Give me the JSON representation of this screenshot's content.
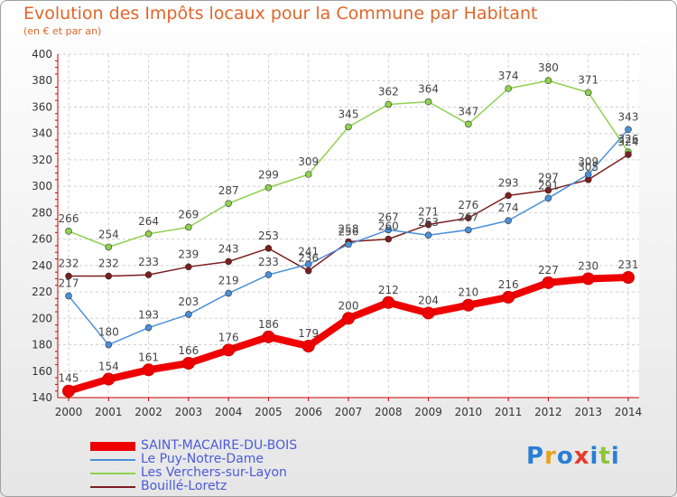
{
  "title": "Evolution des Impôts locaux pour la Commune par Habitant",
  "subtitle": "(en € et par an)",
  "logo_text": "Proxiti",
  "chart_data": {
    "type": "line",
    "x": [
      2000,
      2001,
      2002,
      2003,
      2004,
      2005,
      2006,
      2007,
      2008,
      2009,
      2010,
      2011,
      2012,
      2013,
      2014
    ],
    "ylim": [
      140,
      400
    ],
    "yticks": [
      140,
      160,
      180,
      200,
      220,
      240,
      260,
      280,
      300,
      320,
      340,
      360,
      380,
      400
    ],
    "grid": true,
    "legend_position": "bottom",
    "series": [
      {
        "name": "Les Verchers-sur-Layon",
        "color": "#8fd14f",
        "values": [
          266,
          254,
          264,
          269,
          287,
          299,
          309,
          345,
          362,
          364,
          347,
          374,
          380,
          371,
          326
        ]
      },
      {
        "name": "Bouillé-Loretz",
        "color": "#7b1e1e",
        "values": [
          232,
          232,
          233,
          239,
          243,
          253,
          236,
          258,
          260,
          271,
          276,
          293,
          297,
          305,
          324
        ]
      },
      {
        "name": "Le Puy-Notre-Dame",
        "color": "#4a90d9",
        "values": [
          217,
          180,
          193,
          203,
          219,
          233,
          241,
          256,
          267,
          263,
          267,
          274,
          291,
          309,
          343
        ]
      },
      {
        "name": "SAINT-MACAIRE-DU-BOIS",
        "color": "#ee0000",
        "values": [
          145,
          154,
          161,
          166,
          176,
          186,
          179,
          200,
          212,
          204,
          210,
          216,
          227,
          230,
          231
        ]
      }
    ],
    "legend_order": [
      3,
      2,
      0,
      1
    ],
    "point_labels": [
      [
        "266",
        "254",
        "264",
        "269",
        "287",
        "299",
        "309",
        "345",
        "362",
        "364",
        "347",
        "374",
        "380",
        "371",
        "326"
      ],
      [
        "232",
        "232",
        "233",
        "239",
        "243",
        "253",
        "236",
        "258",
        "260",
        "271",
        "276",
        "293",
        "297",
        "305",
        "324"
      ],
      [
        "217",
        "180",
        "193",
        "203",
        "219",
        "233",
        "241",
        "256",
        "267",
        "263",
        "267",
        "274",
        "291",
        "309",
        "343"
      ],
      [
        "145",
        "154",
        "161",
        "166",
        "176",
        "186",
        "179",
        "200",
        "212",
        "204",
        "210",
        "216",
        "227",
        "230",
        "231"
      ]
    ]
  }
}
